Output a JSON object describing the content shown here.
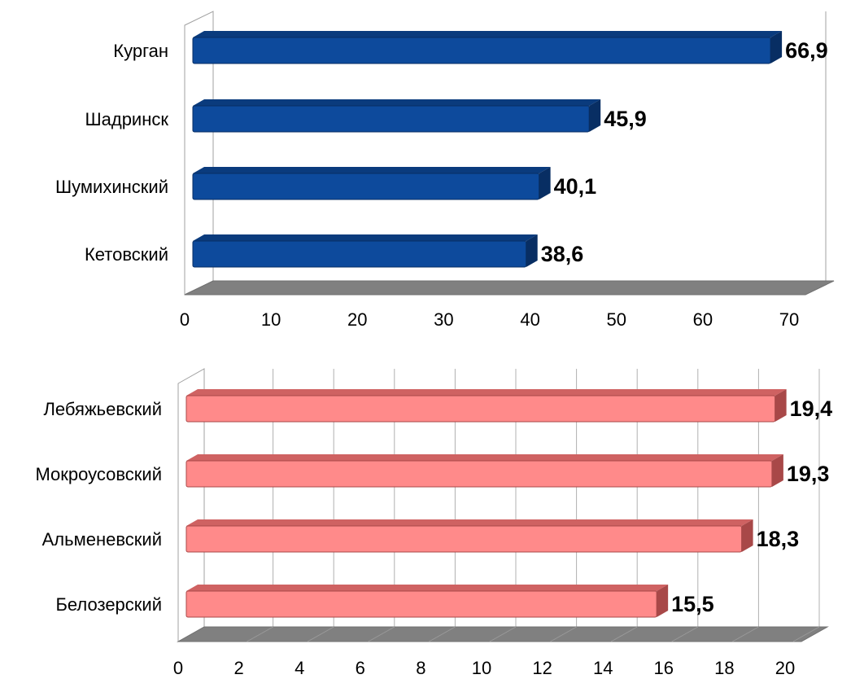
{
  "chart_data": [
    {
      "type": "bar",
      "orientation": "horizontal",
      "title": "",
      "xlabel": "",
      "ylabel": "",
      "categories": [
        "Курган",
        "Шадринск",
        "Шумихинский",
        "Кетовский"
      ],
      "values": [
        66.9,
        45.9,
        40.1,
        38.6
      ],
      "value_labels": [
        "66,9",
        "45,9",
        "40,1",
        "38,6"
      ],
      "xlim": [
        0,
        70
      ],
      "ticks": [
        0,
        10,
        20,
        30,
        40,
        50,
        60,
        70
      ],
      "tick_labels": [
        "0",
        "10",
        "20",
        "30",
        "40",
        "50",
        "60",
        "70"
      ],
      "grid": false,
      "bar_color": "#0d4a9c",
      "bar_top_color": "#0a3b7d",
      "bar_side_color": "#082e63"
    },
    {
      "type": "bar",
      "orientation": "horizontal",
      "title": "",
      "xlabel": "",
      "ylabel": "",
      "categories": [
        "Лебяжьевский",
        "Мокроусовский",
        "Альменевский",
        "Белозерский"
      ],
      "values": [
        19.4,
        19.3,
        18.3,
        15.5
      ],
      "value_labels": [
        "19,4",
        "19,3",
        "18,3",
        "15,5"
      ],
      "xlim": [
        0,
        20
      ],
      "ticks": [
        0,
        2,
        4,
        6,
        8,
        10,
        12,
        14,
        16,
        18,
        20
      ],
      "tick_labels": [
        "0",
        "2",
        "4",
        "6",
        "8",
        "10",
        "12",
        "14",
        "16",
        "18",
        "20"
      ],
      "grid": true,
      "bar_color": "#ff8a8a",
      "bar_top_color": "#cf6262",
      "bar_side_color": "#a84848"
    }
  ]
}
